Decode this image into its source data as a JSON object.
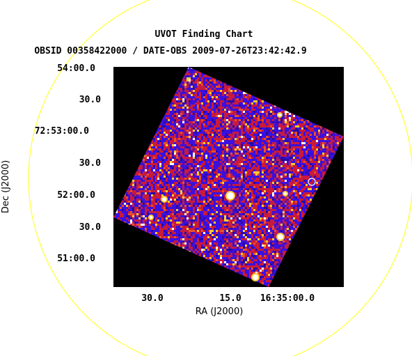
{
  "chart_data": {
    "type": "heatmap",
    "title": "UVOT Finding Chart",
    "subtitle": "OBSID 00358422000 / DATE-OBS 2009-07-26T23:42:42.9",
    "xlabel": "RA (J2000)",
    "ylabel": "Dec (J2000)",
    "x_ticks": [
      "30.0",
      "15.0",
      "16:35:00.0"
    ],
    "y_ticks": [
      "54:00.0",
      "30.0",
      "72:53:00.0",
      "30.0",
      "52:00.0",
      "30.0",
      "51:00.0"
    ],
    "colors": {
      "background": "#000000",
      "field_low": "#3a10e0",
      "field_mid": "#c81a3c",
      "field_high": "#ffcc33",
      "source": "#ffffff",
      "circle": "#ffff33",
      "marker": "#ffffff"
    }
  }
}
